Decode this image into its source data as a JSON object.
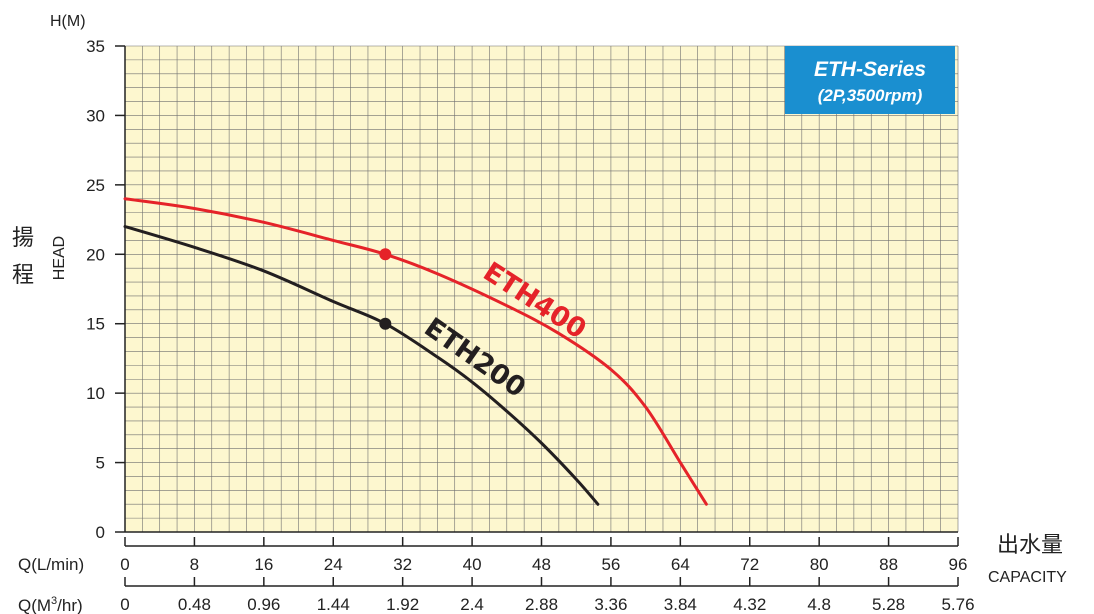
{
  "chart_data": {
    "type": "line",
    "series_box": {
      "title": "ETH-Series",
      "subtitle": "(2P,3500rpm)",
      "color": "#1a8fd0"
    },
    "y_axis": {
      "title": "H(M)",
      "label_cn_1": "揚",
      "label_cn_2": "程",
      "label_en": "HEAD",
      "ticks": [
        "0",
        "5",
        "10",
        "15",
        "20",
        "25",
        "30",
        "35"
      ],
      "ylim": [
        0,
        35
      ]
    },
    "x_axis": {
      "label_cn": "出水量",
      "label_en": "CAPACITY",
      "primary_label": "Q(L/min)",
      "primary_ticks": [
        "0",
        "8",
        "16",
        "24",
        "32",
        "40",
        "48",
        "56",
        "64",
        "72",
        "80",
        "88",
        "96"
      ],
      "secondary_label_pre": "Q(M",
      "secondary_label_sup": "3",
      "secondary_label_post": "/hr)",
      "secondary_ticks": [
        "0",
        "0.48",
        "0.96",
        "1.44",
        "1.92",
        "2.4",
        "2.88",
        "3.36",
        "3.84",
        "4.32",
        "4.8",
        "5.28",
        "5.76"
      ],
      "xlim": [
        0,
        96
      ]
    },
    "grid": true,
    "plot_background": "#fdf7cf",
    "series": [
      {
        "name": "ETH400",
        "color": "#e52329",
        "x": [
          0,
          8,
          16,
          24,
          30,
          36,
          44,
          50,
          56,
          60,
          64,
          67
        ],
        "y": [
          24,
          23.3,
          22.3,
          21,
          20,
          18.6,
          16.3,
          14.3,
          11.7,
          9,
          5,
          2
        ],
        "marker": {
          "x": 30,
          "y": 20
        }
      },
      {
        "name": "ETH200",
        "color": "#231f20",
        "x": [
          0,
          8,
          16,
          24,
          30,
          36,
          40,
          44,
          48,
          52,
          54.5
        ],
        "y": [
          22,
          20.5,
          18.8,
          16.6,
          15,
          12.6,
          10.8,
          8.7,
          6.4,
          3.8,
          2
        ],
        "marker": {
          "x": 30,
          "y": 15
        }
      }
    ]
  }
}
